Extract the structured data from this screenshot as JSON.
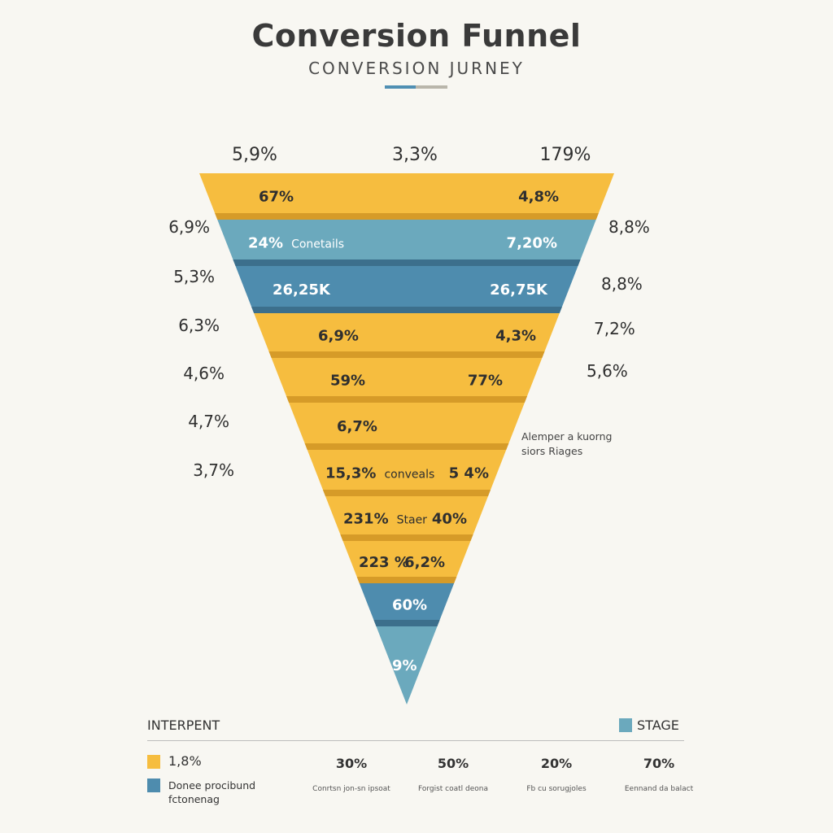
{
  "header": {
    "title": "Conversion Funnel",
    "subtitle": "CONVERSION JURNEY"
  },
  "colors": {
    "yellow": "#f6bd3f",
    "yellow_divider": "#d69b28",
    "blue_light": "#6ba9bd",
    "blue_dark": "#4e8cae",
    "blue_divider": "#3c6f8c",
    "text_dark": "#2f2f2f",
    "text_light": "#ffffff",
    "rule_blue": "#4f8fb3",
    "rule_grey": "#b9b6ab"
  },
  "chart_data": {
    "type": "funnel",
    "top_labels": [
      "5,9%",
      "3,3%",
      "179%"
    ],
    "stages": [
      {
        "left_value": "67%",
        "right_value": "4,8%",
        "outside_left": "",
        "outside_right": "",
        "color": "yellow"
      },
      {
        "left_value": "24%",
        "left_caption": "Conetails",
        "right_value": "7,20%",
        "outside_left": "6,9%",
        "outside_right": "8,8%",
        "color": "blue_light"
      },
      {
        "left_value": "26,25K",
        "right_value": "26,75K",
        "outside_left": "5,3%",
        "outside_right": "8,8%",
        "color": "blue_dark"
      },
      {
        "left_value": "6,9%",
        "right_value": "4,3%",
        "outside_left": "6,3%",
        "outside_right": "7,2%",
        "color": "yellow"
      },
      {
        "left_value": "59%",
        "right_value": "77%",
        "outside_left": "4,6%",
        "outside_right": "5,6%",
        "color": "yellow"
      },
      {
        "left_value": "6,7%",
        "right_value": "",
        "outside_left": "4,7%",
        "outside_right": "",
        "color": "yellow"
      },
      {
        "left_value": "15,3%",
        "left_caption": "conveals",
        "right_value": "5 4%",
        "outside_left": "3,7%",
        "outside_right": "",
        "color": "yellow"
      },
      {
        "left_value": "231%",
        "left_caption": "Staer",
        "right_value": "40%",
        "outside_left": "",
        "outside_right": "",
        "color": "yellow"
      },
      {
        "left_value": "223 %",
        "right_value": "6,2%",
        "outside_left": "",
        "outside_right": "",
        "color": "yellow"
      },
      {
        "left_value": "60%",
        "right_value": "",
        "outside_left": "",
        "outside_right": "",
        "color": "blue_dark"
      },
      {
        "left_value": "9%",
        "right_value": "",
        "outside_left": "",
        "outside_right": "",
        "color": "blue_light"
      }
    ],
    "annotation": [
      "Alemper a kuorng",
      "siors Riages"
    ]
  },
  "legend": {
    "title": "INTERPENT",
    "stage_label": "STAGE",
    "rows": [
      {
        "color": "yellow",
        "text": "1,8%"
      },
      {
        "color": "blue_dark",
        "text": "Donee procibund fctonenag"
      }
    ],
    "stats": [
      {
        "value": "30%",
        "caption": "Conrtsn jon-sn ipsoat"
      },
      {
        "value": "50%",
        "caption": "Forgist coatl deona"
      },
      {
        "value": "20%",
        "caption": "Fb cu sorugjoles"
      },
      {
        "value": "70%",
        "caption": "Eennand da balact"
      }
    ]
  }
}
